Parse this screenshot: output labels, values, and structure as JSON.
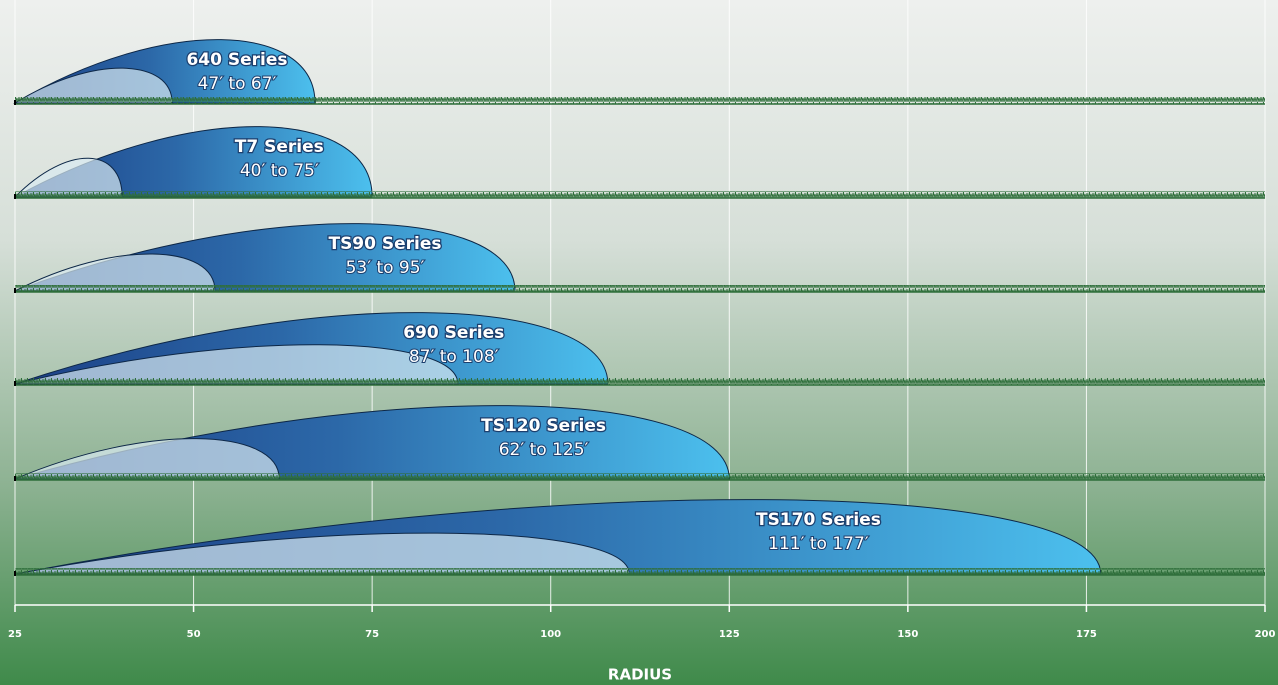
{
  "chart_data": {
    "type": "range",
    "xlabel": "RADIUS",
    "xlim": [
      25,
      200
    ],
    "xticks": [
      25,
      50,
      75,
      100,
      125,
      150,
      175,
      200
    ],
    "grid": true,
    "series": [
      {
        "name": "640 Series",
        "range_label": "47′ to 67′",
        "values": [
          47,
          67
        ]
      },
      {
        "name": "T7 Series",
        "range_label": "40′ to 75′",
        "values": [
          40,
          75
        ]
      },
      {
        "name": "TS90 Series",
        "range_label": "53′ to 95′",
        "values": [
          53,
          95
        ]
      },
      {
        "name": "690 Series",
        "range_label": "87′ to 108′",
        "values": [
          87,
          108
        ]
      },
      {
        "name": "TS120 Series",
        "range_label": "62′ to 125′",
        "values": [
          62,
          125
        ]
      },
      {
        "name": "TS170 Series",
        "range_label": "111′ to 177′",
        "values": [
          111,
          177
        ]
      }
    ]
  }
}
